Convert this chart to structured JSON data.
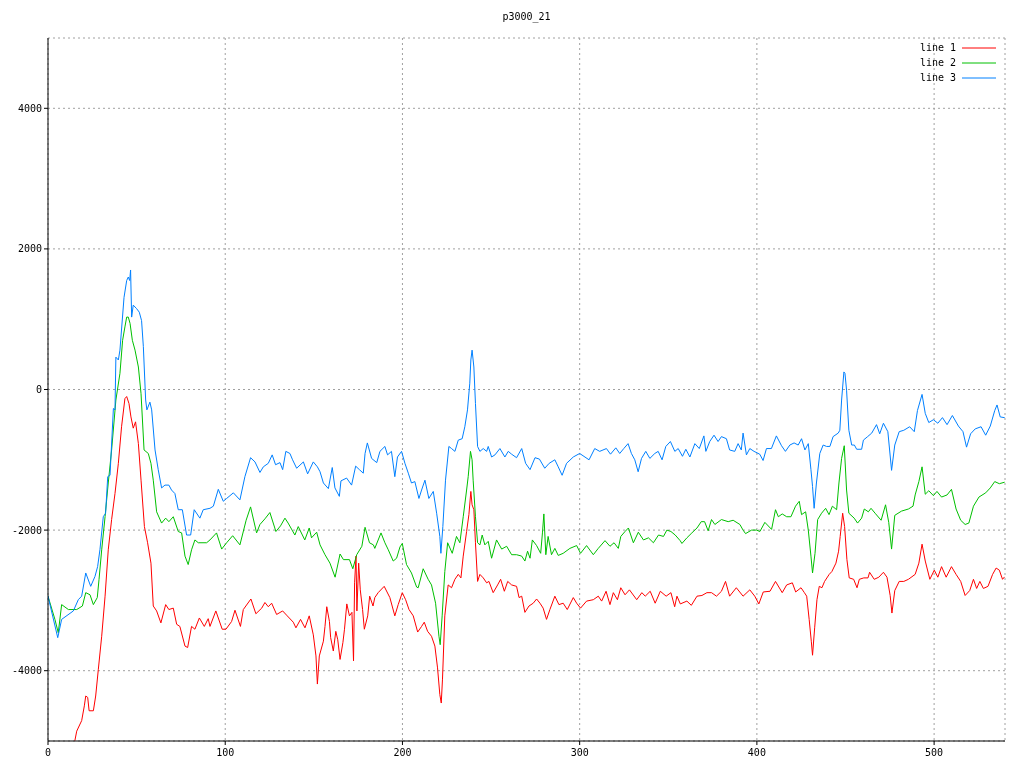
{
  "chart_data": {
    "type": "line",
    "title": "p3000_21",
    "xlim": [
      0,
      540
    ],
    "ylim": [
      -5000,
      5000
    ],
    "xticks": [
      0,
      100,
      200,
      300,
      400,
      500
    ],
    "yticks": [
      -4000,
      -2000,
      0,
      2000,
      4000
    ],
    "grid": true,
    "legend": "top right",
    "series": [
      {
        "name": "line 1",
        "color": "#ff0000",
        "x": [
          15.2,
          16.2,
          19.0,
          20.5,
          21.3,
          22.4,
          23.2,
          25.6,
          26.9,
          28.4,
          30.3,
          32.2,
          34.0,
          35.9,
          37.8,
          39.7,
          41.5,
          43.4,
          44.4,
          45.7,
          46.8,
          48.1,
          49.4,
          51.0,
          52.5,
          54.4,
          56.2,
          58.1,
          59.4,
          61.3,
          63.7,
          66.4,
          68.2,
          70.7,
          72.6,
          74.4,
          77.3,
          78.8,
          81.0,
          82.9,
          85.4,
          88.2,
          90.4,
          91.4,
          94.7,
          98.3,
          100.4,
          103.6,
          105.5,
          108.6,
          110.2,
          114.5,
          117.3,
          120.6,
          122.4,
          124.3,
          126.2,
          129.0,
          132.4,
          135.0,
          138.4,
          139.9,
          142.5,
          145.0,
          147.4,
          149.7,
          151.2,
          152.0,
          153.1,
          155.4,
          156.3,
          157.3,
          158.8,
          159.5,
          161.0,
          162.4,
          163.5,
          164.8,
          166.4,
          167.3,
          168.6,
          170.1,
          171.5,
          172.4,
          173.0,
          173.8,
          174.3,
          175.3,
          176.2,
          177.5,
          178.5,
          180.4,
          181.5,
          183.4,
          184.4,
          186.3,
          189.7,
          192.9,
          195.7,
          197.6,
          199.9,
          201.8,
          203.7,
          206.1,
          208.6,
          210.8,
          212.3,
          214.2,
          216.4,
          218.3,
          219.8,
          221.1,
          221.9,
          222.6,
          223.9,
          225.8,
          227.7,
          229.6,
          231.5,
          233.0,
          234.3,
          236.2,
          237.5,
          238.6,
          239.3,
          240.3,
          241.2,
          242.4,
          243.7,
          245.6,
          247.5,
          248.8,
          251.2,
          253.7,
          255.4,
          257.5,
          259.4,
          261.6,
          264.4,
          265.8,
          267.3,
          269.1,
          271.4,
          273.8,
          275.7,
          277.6,
          279.4,
          281.3,
          283.2,
          286.0,
          288.3,
          290.7,
          293.0,
          296.4,
          298.3,
          300.5,
          303.9,
          307.7,
          310.5,
          312.4,
          314.9,
          317.1,
          319.0,
          321.3,
          323.2,
          325.6,
          328.1,
          332.2,
          335.1,
          337.0,
          339.8,
          342.6,
          345.5,
          348.8,
          351.5,
          353.6,
          354.9,
          356.8,
          360.5,
          363.0,
          366.2,
          369.0,
          371.8,
          374.4,
          377.2,
          380.0,
          382.3,
          384.6,
          388.4,
          392.2,
          396.0,
          398.8,
          401.1,
          403.6,
          407.4,
          410.5,
          414.3,
          416.8,
          420.0,
          421.9,
          424.9,
          426.8,
          428.1,
          429.5,
          430.7,
          431.4,
          432.6,
          433.9,
          435.2,
          436.7,
          438.2,
          440.8,
          442.3,
          444.6,
          446.1,
          447.0,
          448.4,
          449.5,
          450.8,
          452.1,
          454.6,
          456.5,
          457.8,
          460.3,
          462.7,
          463.6,
          466.2,
          468.8,
          471.4,
          473.4,
          475.2,
          476.2,
          477.8,
          480.3,
          482.9,
          485.5,
          489.3,
          491.4,
          493.2,
          495.0,
          497.6,
          500.1,
          502.1,
          504.2,
          506.8,
          509.8,
          512.4,
          515.0,
          517.5,
          520.1,
          522.2,
          524.0,
          525.8,
          527.8,
          530.4,
          533.0,
          535.0,
          536.8,
          538.6,
          539.6
        ],
        "values": [
          -4990,
          -4860,
          -4710,
          -4500,
          -4360,
          -4380,
          -4570,
          -4570,
          -4360,
          -3980,
          -3510,
          -2940,
          -2280,
          -1850,
          -1480,
          -1050,
          -530,
          -130,
          -100,
          -200,
          -390,
          -550,
          -460,
          -770,
          -1290,
          -1950,
          -2180,
          -2470,
          -3080,
          -3150,
          -3320,
          -3060,
          -3130,
          -3110,
          -3340,
          -3370,
          -3650,
          -3670,
          -3370,
          -3410,
          -3250,
          -3370,
          -3260,
          -3370,
          -3150,
          -3410,
          -3410,
          -3300,
          -3140,
          -3370,
          -3130,
          -2980,
          -3190,
          -3110,
          -3030,
          -3090,
          -3040,
          -3200,
          -3150,
          -3220,
          -3310,
          -3390,
          -3270,
          -3390,
          -3220,
          -3490,
          -3790,
          -4190,
          -3790,
          -3580,
          -3370,
          -3090,
          -3300,
          -3530,
          -3720,
          -3440,
          -3560,
          -3840,
          -3600,
          -3410,
          -3050,
          -3220,
          -3170,
          -3860,
          -2750,
          -2370,
          -3150,
          -2470,
          -2850,
          -3130,
          -3410,
          -3220,
          -2940,
          -3080,
          -2960,
          -2890,
          -2800,
          -2960,
          -3220,
          -3060,
          -2890,
          -2990,
          -3130,
          -3220,
          -3450,
          -3370,
          -3310,
          -3440,
          -3510,
          -3650,
          -3960,
          -4340,
          -4460,
          -4120,
          -3220,
          -2780,
          -2820,
          -2700,
          -2630,
          -2680,
          -2370,
          -2020,
          -1780,
          -1450,
          -1640,
          -1710,
          -2180,
          -2730,
          -2630,
          -2680,
          -2750,
          -2730,
          -2890,
          -2780,
          -2700,
          -2870,
          -2730,
          -2780,
          -2800,
          -2960,
          -2940,
          -3170,
          -3080,
          -3040,
          -2980,
          -3040,
          -3110,
          -3270,
          -3130,
          -2940,
          -3060,
          -3040,
          -3130,
          -2960,
          -3040,
          -3110,
          -3010,
          -2990,
          -2940,
          -3010,
          -2870,
          -3060,
          -2890,
          -2990,
          -2820,
          -2920,
          -2850,
          -2990,
          -2890,
          -2940,
          -2870,
          -3040,
          -2870,
          -2940,
          -2890,
          -3090,
          -2940,
          -3050,
          -3010,
          -3070,
          -2940,
          -2930,
          -2890,
          -2890,
          -2940,
          -2870,
          -2730,
          -2940,
          -2820,
          -2940,
          -2850,
          -2940,
          -3050,
          -2880,
          -2870,
          -2730,
          -2890,
          -2780,
          -2750,
          -2880,
          -2820,
          -2890,
          -2940,
          -3270,
          -3580,
          -3780,
          -3390,
          -2990,
          -2800,
          -2820,
          -2730,
          -2630,
          -2590,
          -2470,
          -2300,
          -2090,
          -1760,
          -1950,
          -2420,
          -2680,
          -2700,
          -2820,
          -2700,
          -2680,
          -2680,
          -2600,
          -2700,
          -2670,
          -2600,
          -2670,
          -2930,
          -3180,
          -2860,
          -2730,
          -2730,
          -2700,
          -2630,
          -2470,
          -2200,
          -2440,
          -2700,
          -2570,
          -2670,
          -2520,
          -2670,
          -2520,
          -2630,
          -2730,
          -2930,
          -2860,
          -2700,
          -2830,
          -2730,
          -2830,
          -2800,
          -2630,
          -2540,
          -2570,
          -2700,
          -2670
        ]
      },
      {
        "name": "line 2",
        "color": "#00c000",
        "x": [
          0,
          3.9,
          5.8,
          7.7,
          11.5,
          16.2,
          19.4,
          21.3,
          23.7,
          25.6,
          27.8,
          28.8,
          30.3,
          32.2,
          34.0,
          35.9,
          38.3,
          40.6,
          42.1,
          43.4,
          44.4,
          45.3,
          46.3,
          47.6,
          49.1,
          51.0,
          52.5,
          54.2,
          56.6,
          58.1,
          59.4,
          61.3,
          64.1,
          66.4,
          68.2,
          70.7,
          73.5,
          75.4,
          77.3,
          79.1,
          81.0,
          82.9,
          84.8,
          89.5,
          91.4,
          95.1,
          98.0,
          100.8,
          104.2,
          108.3,
          111.8,
          114.3,
          117.7,
          119.6,
          122.4,
          125.2,
          128.6,
          131.2,
          133.7,
          135.5,
          139.3,
          141.2,
          144.9,
          147.4,
          148.7,
          151.6,
          153.5,
          156.3,
          159.1,
          162.0,
          164.8,
          166.7,
          170.1,
          172.0,
          174.2,
          177.1,
          178.9,
          181.4,
          183.6,
          184.4,
          187.9,
          190.1,
          192.0,
          194.8,
          196.7,
          198.6,
          199.9,
          202.3,
          205.1,
          208.0,
          208.9,
          211.7,
          214.5,
          216.4,
          218.7,
          220.6,
          221.3,
          222.4,
          223.9,
          225.5,
          228.1,
          230.5,
          232.4,
          234.3,
          236.2,
          237.1,
          238.4,
          239.3,
          239.9,
          241.2,
          242.4,
          243.7,
          245.0,
          246.5,
          248.4,
          250.3,
          253.1,
          256.0,
          258.8,
          261.6,
          264.4,
          267.3,
          269.1,
          270.6,
          272.0,
          273.3,
          275.7,
          278.0,
          279.0,
          279.8,
          280.9,
          282.2,
          284.1,
          286.0,
          287.9,
          290.7,
          294.5,
          298.3,
          300.5,
          303.9,
          307.7,
          310.5,
          314.3,
          317.1,
          319.4,
          321.8,
          323.2,
          325.6,
          327.5,
          330.3,
          333.1,
          336.0,
          338.8,
          341.6,
          344.5,
          347.3,
          349.2,
          351.5,
          353.9,
          356.7,
          357.7,
          360.5,
          363.3,
          366.2,
          368.6,
          370.5,
          372.5,
          374.4,
          376.3,
          380.0,
          383.8,
          386.6,
          390.4,
          392.2,
          393.6,
          397.0,
          399.8,
          401.7,
          404.5,
          408.3,
          410.5,
          412.1,
          414.3,
          416.8,
          419.2,
          421.8,
          423.9,
          425.2,
          427.5,
          429.0,
          430.5,
          431.4,
          432.8,
          434.3,
          436.5,
          438.8,
          440.7,
          442.6,
          445.0,
          446.3,
          447.8,
          449.3,
          450.6,
          451.9,
          454.9,
          456.8,
          459.1,
          460.6,
          462.9,
          464.4,
          466.7,
          470.1,
          472.6,
          474.4,
          476.0,
          477.8,
          481.6,
          485.5,
          488.1,
          489.3,
          491.4,
          493.2,
          495.0,
          497.0,
          499.6,
          501.6,
          504.2,
          507.3,
          509.8,
          512.4,
          515.0,
          517.5,
          519.6,
          522.2,
          525.3,
          529.1,
          531.7,
          534.2,
          536.8,
          539.6
        ],
        "values": [
          -2940,
          -3270,
          -3460,
          -3060,
          -3130,
          -3130,
          -3080,
          -2890,
          -2920,
          -3060,
          -2960,
          -2700,
          -2280,
          -1810,
          -1330,
          -860,
          -150,
          230,
          700,
          890,
          1030,
          1030,
          940,
          700,
          560,
          320,
          -60,
          -860,
          -910,
          -1050,
          -1290,
          -1740,
          -1900,
          -1830,
          -1880,
          -1810,
          -2020,
          -2040,
          -2370,
          -2490,
          -2280,
          -2140,
          -2180,
          -2180,
          -2140,
          -2040,
          -2270,
          -2180,
          -2080,
          -2210,
          -1860,
          -1670,
          -2040,
          -1920,
          -1840,
          -1750,
          -2020,
          -1940,
          -1830,
          -1900,
          -2070,
          -1950,
          -2140,
          -1970,
          -2110,
          -2030,
          -2210,
          -2350,
          -2470,
          -2670,
          -2340,
          -2420,
          -2420,
          -2550,
          -2350,
          -2230,
          -1960,
          -2180,
          -2210,
          -2260,
          -2040,
          -2180,
          -2280,
          -2440,
          -2400,
          -2240,
          -2190,
          -2490,
          -2610,
          -2810,
          -2820,
          -2550,
          -2700,
          -2780,
          -3040,
          -3510,
          -3630,
          -3220,
          -2590,
          -2180,
          -2330,
          -2090,
          -2180,
          -1810,
          -1430,
          -1240,
          -880,
          -1000,
          -1290,
          -1810,
          -2180,
          -2210,
          -2070,
          -2210,
          -2160,
          -2400,
          -2140,
          -2270,
          -2230,
          -2350,
          -2350,
          -2370,
          -2440,
          -2300,
          -2400,
          -2140,
          -2220,
          -2330,
          -2040,
          -1770,
          -2350,
          -2090,
          -2350,
          -2260,
          -2360,
          -2330,
          -2260,
          -2220,
          -2330,
          -2220,
          -2350,
          -2260,
          -2150,
          -2230,
          -2180,
          -2260,
          -2090,
          -2020,
          -1970,
          -2180,
          -2030,
          -2140,
          -2110,
          -2180,
          -2070,
          -2090,
          -2000,
          -2020,
          -2070,
          -2150,
          -2190,
          -2110,
          -2040,
          -1970,
          -1880,
          -1880,
          -2010,
          -1850,
          -1920,
          -1850,
          -1880,
          -1860,
          -1920,
          -2000,
          -2050,
          -2000,
          -2000,
          -2020,
          -1890,
          -1990,
          -1710,
          -1810,
          -1770,
          -1810,
          -1810,
          -1660,
          -1590,
          -1780,
          -1740,
          -2000,
          -2370,
          -2610,
          -2330,
          -1850,
          -1760,
          -1690,
          -1780,
          -1660,
          -1710,
          -1330,
          -980,
          -800,
          -1430,
          -1760,
          -1830,
          -1900,
          -1830,
          -1700,
          -1740,
          -1690,
          -1760,
          -1860,
          -1640,
          -1890,
          -2270,
          -1790,
          -1730,
          -1700,
          -1660,
          -1500,
          -1310,
          -1100,
          -1490,
          -1440,
          -1510,
          -1450,
          -1530,
          -1500,
          -1420,
          -1700,
          -1860,
          -1920,
          -1900,
          -1660,
          -1530,
          -1470,
          -1400,
          -1310,
          -1340,
          -1320
        ]
      },
      {
        "name": "line 3",
        "color": "#0080ff",
        "x": [
          0,
          5.5,
          7.7,
          14.3,
          17.1,
          19.0,
          21.3,
          24.1,
          26.5,
          28.0,
          29.3,
          31.2,
          32.5,
          33.7,
          35.0,
          36.9,
          37.8,
          38.3,
          39.7,
          40.6,
          42.9,
          44.4,
          45.3,
          46.1,
          46.6,
          47.2,
          48.1,
          50.0,
          51.5,
          52.8,
          53.8,
          55.1,
          55.8,
          57.5,
          58.5,
          60.4,
          62.2,
          64.1,
          66.0,
          68.2,
          69.7,
          71.6,
          73.5,
          75.8,
          78.2,
          80.5,
          82.5,
          85.7,
          87.6,
          91.4,
          93.3,
          96.1,
          98.9,
          100.8,
          104.6,
          108.3,
          111.1,
          114.3,
          116.8,
          119.6,
          121.5,
          124.3,
          126.5,
          128.4,
          130.9,
          132.4,
          134.2,
          136.5,
          138.0,
          140.3,
          144.1,
          146.5,
          149.7,
          152.0,
          153.5,
          155.4,
          158.2,
          160.4,
          161.9,
          164.4,
          165.3,
          168.5,
          171.3,
          173.6,
          175.7,
          177.9,
          178.9,
          180.2,
          182.6,
          185.5,
          187.3,
          190.1,
          191.6,
          193.8,
          195.7,
          197.2,
          199.5,
          201.4,
          203.3,
          205.1,
          207.0,
          209.3,
          210.8,
          212.7,
          214.9,
          217.4,
          219.3,
          221.1,
          221.7,
          222.8,
          224.3,
          226.2,
          227.7,
          229.6,
          231.5,
          233.7,
          235.2,
          236.7,
          238.0,
          238.6,
          239.3,
          240.3,
          241.2,
          242.4,
          243.7,
          245.6,
          247.5,
          248.4,
          250.3,
          252.2,
          255.0,
          257.8,
          259.7,
          261.6,
          264.4,
          267.3,
          269.5,
          272.0,
          274.8,
          277.3,
          280.3,
          282.8,
          286.0,
          287.9,
          290.1,
          292.6,
          296.4,
          300.0,
          305.3,
          308.5,
          311.3,
          315.1,
          317.4,
          320.4,
          322.6,
          324.9,
          327.3,
          329.2,
          331.1,
          333.0,
          334.9,
          337.3,
          339.6,
          342.4,
          344.3,
          346.5,
          348.6,
          351.2,
          353.7,
          355.6,
          358.0,
          359.9,
          362.2,
          365.0,
          367.5,
          370.1,
          371.2,
          373.4,
          375.8,
          378.1,
          380.0,
          382.8,
          384.6,
          387.5,
          389.4,
          391.2,
          392.2,
          394.1,
          396.0,
          398.4,
          401.6,
          403.5,
          405.4,
          408.2,
          411.0,
          413.9,
          416.1,
          418.6,
          421.0,
          423.3,
          425.2,
          427.1,
          429.0,
          430.5,
          431.4,
          432.3,
          433.6,
          435.5,
          437.4,
          439.3,
          441.2,
          443.0,
          445.9,
          446.8,
          447.8,
          449.1,
          449.7,
          450.6,
          451.9,
          453.5,
          455.0,
          456.3,
          459.1,
          460.1,
          462.5,
          464.8,
          467.5,
          469.3,
          471.4,
          473.9,
          476.0,
          477.8,
          480.3,
          482.9,
          486.2,
          488.8,
          490.6,
          493.2,
          495.0,
          497.0,
          499.6,
          502.1,
          504.7,
          507.3,
          510.3,
          513.7,
          516.3,
          518.3,
          520.6,
          523.2,
          526.5,
          529.1,
          531.7,
          534.2,
          535.5,
          537.3,
          539.6
        ],
        "values": [
          -2940,
          -3530,
          -3270,
          -3150,
          -2990,
          -2940,
          -2610,
          -2800,
          -2660,
          -2520,
          -2280,
          -1810,
          -1760,
          -1240,
          -1220,
          -270,
          -290,
          460,
          420,
          560,
          1310,
          1550,
          1600,
          1550,
          1700,
          1030,
          1200,
          1150,
          1100,
          980,
          610,
          -150,
          -290,
          -180,
          -290,
          -860,
          -1140,
          -1400,
          -1360,
          -1360,
          -1430,
          -1480,
          -1710,
          -1710,
          -2070,
          -2070,
          -1710,
          -1830,
          -1710,
          -1690,
          -1660,
          -1420,
          -1590,
          -1550,
          -1470,
          -1570,
          -1240,
          -970,
          -1030,
          -1180,
          -1100,
          -1050,
          -930,
          -1070,
          -1040,
          -1140,
          -880,
          -910,
          -1000,
          -1120,
          -1030,
          -1200,
          -1030,
          -1100,
          -1170,
          -1330,
          -1410,
          -1110,
          -1400,
          -1520,
          -1300,
          -1260,
          -1360,
          -1090,
          -1140,
          -1190,
          -910,
          -760,
          -980,
          -1040,
          -880,
          -810,
          -930,
          -880,
          -1240,
          -960,
          -880,
          -1050,
          -1190,
          -1330,
          -1310,
          -1550,
          -1430,
          -1290,
          -1550,
          -1450,
          -1760,
          -2090,
          -2330,
          -1950,
          -1290,
          -810,
          -840,
          -880,
          -720,
          -700,
          -530,
          -290,
          90,
          420,
          560,
          320,
          -200,
          -810,
          -880,
          -840,
          -880,
          -810,
          -960,
          -930,
          -840,
          -960,
          -880,
          -920,
          -970,
          -840,
          -1050,
          -1140,
          -970,
          -990,
          -1120,
          -1050,
          -1000,
          -1100,
          -1220,
          -1050,
          -960,
          -910,
          -1000,
          -840,
          -880,
          -840,
          -920,
          -830,
          -910,
          -840,
          -770,
          -910,
          -1000,
          -1170,
          -980,
          -880,
          -980,
          -910,
          -880,
          -1000,
          -810,
          -740,
          -880,
          -840,
          -950,
          -850,
          -960,
          -770,
          -840,
          -660,
          -880,
          -740,
          -650,
          -740,
          -670,
          -700,
          -860,
          -880,
          -770,
          -860,
          -620,
          -930,
          -840,
          -880,
          -920,
          -1010,
          -840,
          -840,
          -660,
          -800,
          -880,
          -790,
          -760,
          -790,
          -700,
          -860,
          -770,
          -1140,
          -1380,
          -1690,
          -1330,
          -910,
          -790,
          -810,
          -810,
          -670,
          -620,
          -580,
          -150,
          250,
          230,
          -10,
          -580,
          -790,
          -790,
          -850,
          -850,
          -720,
          -670,
          -620,
          -500,
          -630,
          -480,
          -600,
          -1150,
          -790,
          -600,
          -580,
          -530,
          -600,
          -300,
          -70,
          -340,
          -470,
          -430,
          -480,
          -400,
          -500,
          -370,
          -520,
          -600,
          -820,
          -630,
          -560,
          -530,
          -650,
          -520,
          -300,
          -220,
          -390,
          -400
        ]
      }
    ]
  }
}
